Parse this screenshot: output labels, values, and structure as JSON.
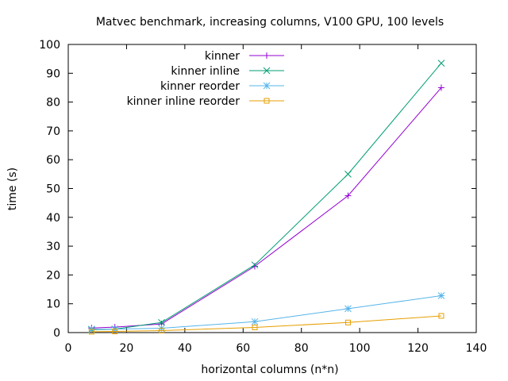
{
  "chart_data": {
    "type": "line",
    "title": "Matvec benchmark, increasing columns, V100 GPU, 100 levels",
    "xlabel": "horizontal columns (n*n)",
    "ylabel": "time (s)",
    "xlim": [
      0,
      140
    ],
    "ylim": [
      0,
      100
    ],
    "xticks": [
      0,
      20,
      40,
      60,
      80,
      100,
      120,
      140
    ],
    "yticks": [
      0,
      10,
      20,
      30,
      40,
      50,
      60,
      70,
      80,
      90,
      100
    ],
    "grid": false,
    "legend_position": "top-center",
    "x": [
      8,
      16,
      32,
      64,
      96,
      128
    ],
    "series": [
      {
        "name": "kinner",
        "color": "#9400d3",
        "marker": "plus",
        "values": [
          1.6,
          1.9,
          3.0,
          23.0,
          47.5,
          85.0
        ]
      },
      {
        "name": "kinner inline",
        "color": "#009e73",
        "marker": "cross",
        "values": [
          1.0,
          1.2,
          3.5,
          23.5,
          55.0,
          93.5
        ]
      },
      {
        "name": "kinner reorder",
        "color": "#56b4e9",
        "marker": "star",
        "values": [
          1.2,
          1.2,
          1.5,
          3.8,
          8.3,
          12.8
        ]
      },
      {
        "name": "kinner inline reorder",
        "color": "#e69f00",
        "marker": "open-square",
        "values": [
          0.3,
          0.4,
          0.7,
          1.8,
          3.5,
          5.8
        ]
      }
    ]
  }
}
